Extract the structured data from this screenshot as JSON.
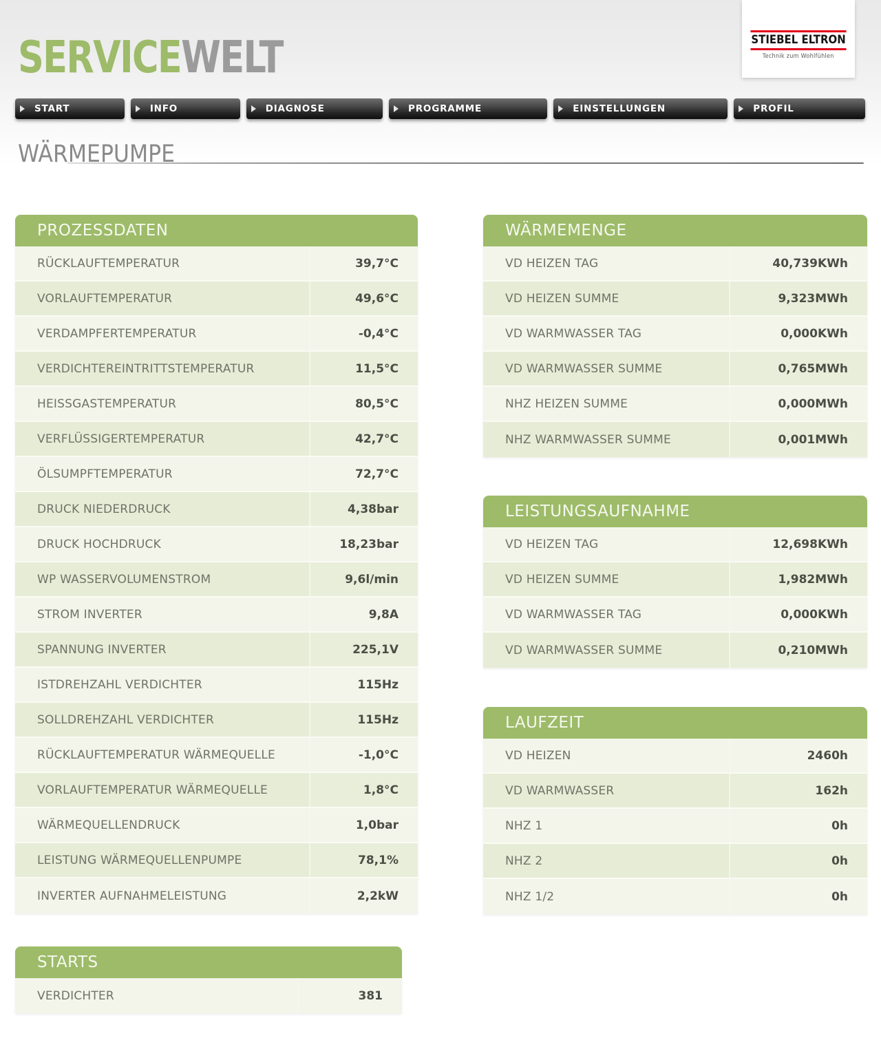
{
  "brand": {
    "logo_primary": "SERVICE",
    "logo_secondary": "WELT",
    "vendor_name": "STIEBEL ELTRON",
    "vendor_tagline": "Technik zum Wohlfühlen"
  },
  "nav": {
    "items": [
      {
        "label": "START"
      },
      {
        "label": "INFO"
      },
      {
        "label": "DIAGNOSE"
      },
      {
        "label": "PROGRAMME"
      },
      {
        "label": "EINSTELLUNGEN"
      },
      {
        "label": "PROFIL"
      }
    ]
  },
  "page": {
    "title": "WÄRMEPUMPE"
  },
  "tables": {
    "prozessdaten": {
      "title": "PROZESSDATEN",
      "rows": [
        {
          "label": "RÜCKLAUFTEMPERATUR",
          "value": "39,7°C"
        },
        {
          "label": "VORLAUFTEMPERATUR",
          "value": "49,6°C"
        },
        {
          "label": "VERDAMPFERTEMPERATUR",
          "value": "-0,4°C"
        },
        {
          "label": "VERDICHTEREINTRITTSTEMPERATUR",
          "value": "11,5°C"
        },
        {
          "label": "HEISSGASTEMPERATUR",
          "value": "80,5°C"
        },
        {
          "label": "VERFLÜSSIGERTEMPERATUR",
          "value": "42,7°C"
        },
        {
          "label": "ÖLSUMPFTEMPERATUR",
          "value": "72,7°C"
        },
        {
          "label": "DRUCK NIEDERDRUCK",
          "value": "4,38bar"
        },
        {
          "label": "DRUCK HOCHDRUCK",
          "value": "18,23bar"
        },
        {
          "label": "WP WASSERVOLUMENSTROM",
          "value": "9,6l/min"
        },
        {
          "label": "STROM INVERTER",
          "value": "9,8A"
        },
        {
          "label": "SPANNUNG INVERTER",
          "value": "225,1V"
        },
        {
          "label": "ISTDREHZAHL VERDICHTER",
          "value": "115Hz"
        },
        {
          "label": "SOLLDREHZAHL VERDICHTER",
          "value": "115Hz"
        },
        {
          "label": "RÜCKLAUFTEMPERATUR WÄRMEQUELLE",
          "value": "-1,0°C"
        },
        {
          "label": "VORLAUFTEMPERATUR WÄRMEQUELLE",
          "value": "1,8°C"
        },
        {
          "label": "WÄRMEQUELLENDRUCK",
          "value": "1,0bar"
        },
        {
          "label": "LEISTUNG WÄRMEQUELLENPUMPE",
          "value": "78,1%"
        },
        {
          "label": "INVERTER AUFNAHMELEISTUNG",
          "value": "2,2kW"
        }
      ]
    },
    "waermemenge": {
      "title": "WÄRMEMENGE",
      "rows": [
        {
          "label": "VD HEIZEN TAG",
          "value": "40,739KWh"
        },
        {
          "label": "VD HEIZEN SUMME",
          "value": "9,323MWh"
        },
        {
          "label": "VD WARMWASSER TAG",
          "value": "0,000KWh"
        },
        {
          "label": "VD WARMWASSER SUMME",
          "value": "0,765MWh"
        },
        {
          "label": "NHZ HEIZEN SUMME",
          "value": "0,000MWh"
        },
        {
          "label": "NHZ WARMWASSER SUMME",
          "value": "0,001MWh"
        }
      ]
    },
    "leistungsaufnahme": {
      "title": "LEISTUNGSAUFNAHME",
      "rows": [
        {
          "label": "VD HEIZEN TAG",
          "value": "12,698KWh"
        },
        {
          "label": "VD HEIZEN SUMME",
          "value": "1,982MWh"
        },
        {
          "label": "VD WARMWASSER TAG",
          "value": "0,000KWh"
        },
        {
          "label": "VD WARMWASSER SUMME",
          "value": "0,210MWh"
        }
      ]
    },
    "laufzeit": {
      "title": "LAUFZEIT",
      "rows": [
        {
          "label": "VD HEIZEN",
          "value": "2460h"
        },
        {
          "label": "VD WARMWASSER",
          "value": "162h"
        },
        {
          "label": "NHZ 1",
          "value": "0h"
        },
        {
          "label": "NHZ 2",
          "value": "0h"
        },
        {
          "label": "NHZ 1/2",
          "value": "0h"
        }
      ]
    },
    "starts": {
      "title": "STARTS",
      "rows": [
        {
          "label": "VERDICHTER",
          "value": "381"
        }
      ]
    }
  },
  "colors": {
    "accent_green": "#9dbb69",
    "brand_red": "#e2001a",
    "row_light": "#f3f5ea",
    "row_dark": "#e7ecd7",
    "nav_dark": "#1a1a1a",
    "label_gray": "#6f7366",
    "value_gray": "#4b4e44"
  }
}
